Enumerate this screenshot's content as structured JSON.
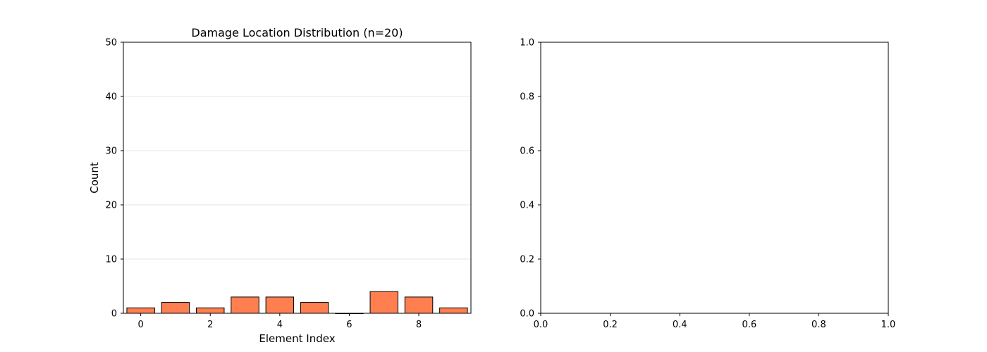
{
  "chart_data": [
    {
      "type": "bar",
      "title": "Damage Location Distribution (n=20)",
      "xlabel": "Element Index",
      "ylabel": "Count",
      "categories": [
        0,
        1,
        2,
        3,
        4,
        5,
        6,
        7,
        8,
        9
      ],
      "values": [
        1,
        2,
        1,
        3,
        3,
        2,
        0,
        4,
        3,
        1
      ],
      "xlim": [
        -0.5,
        9.5
      ],
      "ylim": [
        0,
        50
      ],
      "xticks": [
        0,
        2,
        4,
        6,
        8
      ],
      "yticks": [
        0,
        10,
        20,
        30,
        40,
        50
      ],
      "bar_color": "#ff7f50",
      "bar_edge_color": "#000000",
      "grid": "y"
    },
    {
      "type": "line",
      "title": "",
      "xlabel": "",
      "ylabel": "",
      "series": [],
      "xlim": [
        0,
        1
      ],
      "ylim": [
        0,
        1
      ],
      "xticks": [
        "0.0",
        "0.2",
        "0.4",
        "0.6",
        "0.8",
        "1.0"
      ],
      "yticks": [
        "0.0",
        "0.2",
        "0.4",
        "0.6",
        "0.8",
        "1.0"
      ],
      "grid": "off"
    }
  ]
}
